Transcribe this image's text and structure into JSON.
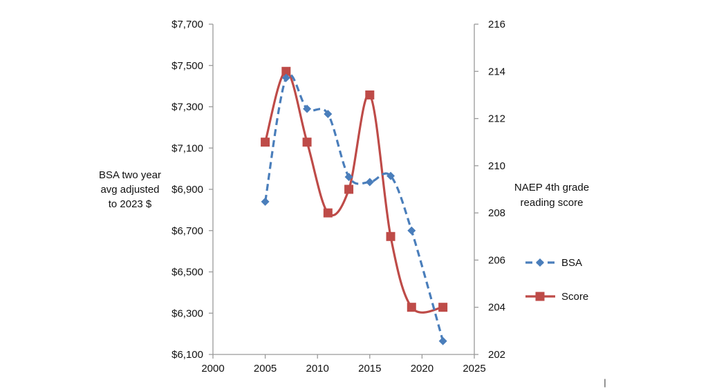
{
  "chart_data": {
    "type": "line",
    "title": "",
    "xlabel": "",
    "ylabel_left": [
      "BSA two year",
      "avg adjusted",
      "to 2023 $"
    ],
    "ylabel_right": [
      "NAEP 4th grade",
      "reading score"
    ],
    "x_ticks": [
      "2000",
      "2005",
      "2010",
      "2015",
      "2020",
      "2025"
    ],
    "xlim": [
      2000,
      2025
    ],
    "y_left_ticks": [
      "$6,100",
      "$6,300",
      "$6,500",
      "$6,700",
      "$6,900",
      "$7,100",
      "$7,300",
      "$7,500",
      "$7,700"
    ],
    "ylim_left": [
      6100,
      7700
    ],
    "y_right_ticks": [
      "202",
      "204",
      "206",
      "208",
      "210",
      "212",
      "214",
      "216"
    ],
    "ylim_right": [
      202,
      216
    ],
    "grid": false,
    "legend_position": "right",
    "series": [
      {
        "name": "BSA",
        "axis": "left",
        "color": "#4a7ebb",
        "line_style": "dashed",
        "marker": "diamond",
        "x": [
          2005,
          2007,
          2009,
          2011,
          2013,
          2015,
          2017,
          2019,
          2022
        ],
        "values": [
          6840,
          7440,
          7290,
          7265,
          6960,
          6935,
          6965,
          6700,
          6165
        ]
      },
      {
        "name": "Score",
        "axis": "right",
        "color": "#be4b48",
        "line_style": "solid",
        "marker": "square",
        "x": [
          2005,
          2007,
          2009,
          2011,
          2013,
          2015,
          2017,
          2019,
          2022
        ],
        "values": [
          211,
          214,
          211,
          208,
          209,
          213,
          207,
          204,
          204
        ]
      }
    ]
  },
  "page": {
    "corner_mark": "|"
  }
}
